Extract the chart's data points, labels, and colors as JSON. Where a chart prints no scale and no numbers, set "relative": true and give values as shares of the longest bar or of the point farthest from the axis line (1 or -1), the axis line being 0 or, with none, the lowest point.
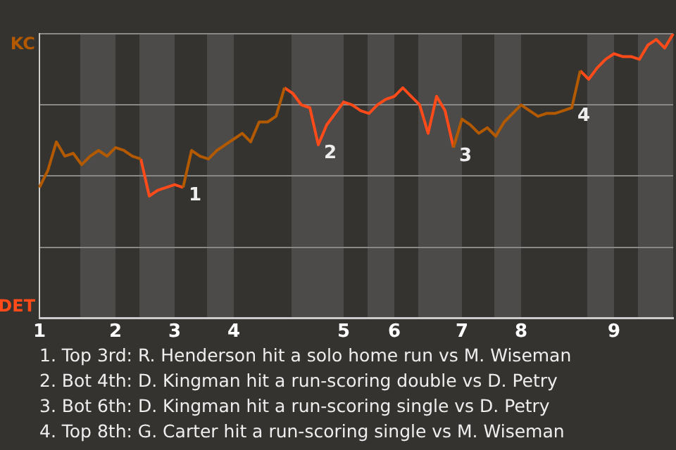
{
  "chart_data": {
    "type": "line",
    "categories": [
      "1",
      null,
      null,
      null,
      null,
      null,
      null,
      null,
      null,
      "2",
      null,
      null,
      null,
      null,
      null,
      null,
      "3",
      null,
      null,
      null,
      null,
      null,
      null,
      "4",
      null,
      null,
      null,
      null,
      null,
      null,
      null,
      null,
      null,
      null,
      null,
      null,
      "5",
      null,
      null,
      null,
      null,
      null,
      "6",
      null,
      null,
      null,
      null,
      null,
      null,
      null,
      "7",
      null,
      null,
      null,
      null,
      null,
      null,
      "8",
      null,
      null,
      null,
      null,
      null,
      null,
      null,
      null,
      null,
      null,
      "9",
      null,
      null,
      null,
      null,
      null,
      null,
      null
    ],
    "series": [
      {
        "color": "#b35a00",
        "values": [
          0.46,
          0.52,
          0.62,
          0.57,
          0.58,
          0.54,
          0.57,
          0.59,
          0.57,
          0.6,
          0.59,
          0.57,
          0.56,
          null,
          null,
          null,
          null,
          0.46,
          0.59,
          0.57,
          0.56,
          0.59,
          0.61,
          0.63,
          0.65,
          0.62,
          0.69,
          0.69,
          0.71,
          0.81,
          null,
          null,
          null,
          null,
          null,
          null,
          null,
          null,
          null,
          null,
          null,
          null,
          null,
          null,
          null,
          null,
          null,
          null,
          null,
          0.6,
          0.7,
          0.68,
          0.65,
          0.67,
          0.64,
          0.69,
          0.72,
          0.75,
          0.73,
          0.71,
          0.72,
          0.72,
          0.73,
          0.74,
          0.87,
          null,
          null,
          null,
          null,
          null,
          null,
          null,
          null,
          null,
          null,
          null
        ]
      },
      {
        "color": "#ff4a1a",
        "values": [
          null,
          null,
          null,
          null,
          null,
          null,
          null,
          null,
          null,
          null,
          null,
          null,
          0.56,
          0.43,
          0.45,
          0.46,
          0.47,
          0.46,
          null,
          null,
          null,
          null,
          null,
          null,
          null,
          null,
          null,
          null,
          null,
          0.81,
          0.79,
          0.75,
          0.74,
          0.61,
          0.68,
          0.72,
          0.76,
          0.75,
          0.73,
          0.72,
          0.75,
          0.77,
          0.78,
          0.81,
          0.78,
          0.75,
          0.65,
          0.78,
          0.73,
          0.6,
          null,
          null,
          null,
          null,
          null,
          null,
          null,
          null,
          null,
          null,
          null,
          null,
          null,
          null,
          0.87,
          0.84,
          0.88,
          0.91,
          0.93,
          0.92,
          0.92,
          0.91,
          0.96,
          0.98,
          0.95,
          1.0
        ]
      }
    ],
    "relative": true,
    "grid": "y",
    "marker": "none",
    "annotations": [
      "KC",
      "DET",
      "1",
      "2",
      "3",
      "4",
      "1. Top 3rd: R. Henderson hit a solo home run vs M. Wiseman",
      "2. Bot 4th: D. Kingman hit a run-scoring double vs D. Petry",
      "3. Bot 6th: D. Kingman hit a run-scoring single vs D. Petry",
      "4. Top 8th: G. Carter hit a run-scoring single vs M. Wiseman"
    ]
  }
}
